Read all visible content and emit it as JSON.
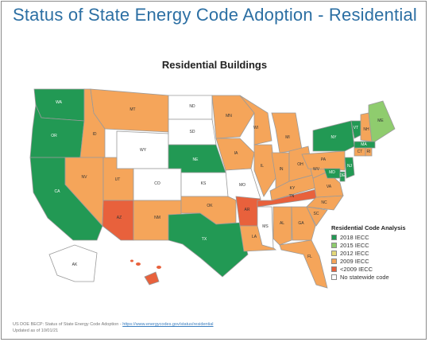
{
  "title": "Status of State Energy Code Adoption - Residential",
  "map_title": "Residential Buildings",
  "legend": {
    "title": "Residential Code Analysis",
    "items": [
      {
        "label": "2018 IECC",
        "color": "#229954"
      },
      {
        "label": "2015 IECC",
        "color": "#8fcc6e"
      },
      {
        "label": "2012 IECC",
        "color": "#e3d878"
      },
      {
        "label": "2009 IECC",
        "color": "#f5a55a"
      },
      {
        "label": "<2009 IECC",
        "color": "#e8613c"
      },
      {
        "label": "No statewide code",
        "color": "#ffffff"
      }
    ]
  },
  "states": {
    "WA": "2018 IECC",
    "OR": "2018 IECC",
    "CA": "2018 IECC",
    "NE": "2018 IECC",
    "TX": "2018 IECC",
    "NY": "2018 IECC",
    "VT": "2018 IECC",
    "MD": "2018 IECC",
    "NJ": "2018 IECC",
    "DE": "2018 IECC",
    "ME": "2015 IECC",
    "ID": "2009 IECC",
    "MT": "2009 IECC",
    "NV": "2009 IECC",
    "UT": "2009 IECC",
    "NM": "2009 IECC",
    "MN": "2009 IECC",
    "IA": "2009 IECC",
    "WI": "2009 IECC",
    "IL": "2009 IECC",
    "MI": "2009 IECC",
    "IN": "2009 IECC",
    "OH": "2009 IECC",
    "PA": "2009 IECC",
    "WV": "2009 IECC",
    "VA": "2009 IECC",
    "KY": "2009 IECC",
    "NC": "2009 IECC",
    "SC": "2009 IECC",
    "GA": "2009 IECC",
    "AL": "2009 IECC",
    "FL": "2009 IECC",
    "LA": "2009 IECC",
    "OK": "2009 IECC",
    "NH": "2009 IECC",
    "CT": "2009 IECC",
    "RI": "2009 IECC",
    "AZ": "<2009 IECC",
    "AR": "<2009 IECC",
    "TN": "<2009 IECC",
    "HI": "<2009 IECC",
    "ND": "No statewide code",
    "SD": "No statewide code",
    "WY": "No statewide code",
    "CO": "No statewide code",
    "KS": "No statewide code",
    "MO": "No statewide code",
    "MS": "No statewide code",
    "AK": "No statewide code",
    "MA": "2018 IECC"
  },
  "footer": {
    "source_prefix": "US DOE BECP: Status of State Energy Code Adoption - ",
    "source_link": "https://www.energycodes.gov/status/residential",
    "updated": "Updated as of 10/01/21"
  }
}
